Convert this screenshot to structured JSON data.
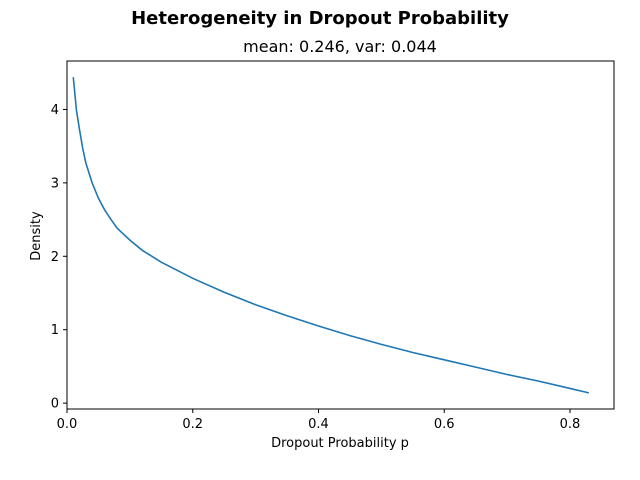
{
  "chart_data": {
    "type": "line",
    "title": "Heterogeneity in Dropout Probability",
    "subtitle": "mean: 0.246, var: 0.044",
    "xlabel": "Dropout Probability p",
    "ylabel": "Density",
    "xlim": [
      -0.0,
      0.87
    ],
    "ylim": [
      -0.08,
      4.66
    ],
    "xticks": [
      0.0,
      0.2,
      0.4,
      0.6,
      0.8
    ],
    "xtick_labels": [
      "0.0",
      "0.2",
      "0.4",
      "0.6",
      "0.8"
    ],
    "yticks": [
      0,
      1,
      2,
      3,
      4
    ],
    "ytick_labels": [
      "0",
      "1",
      "2",
      "3",
      "4"
    ],
    "grid": false,
    "line_color": "#1f77b4",
    "series": [
      {
        "x": [
          0.01,
          0.015,
          0.02,
          0.025,
          0.03,
          0.04,
          0.05,
          0.06,
          0.07,
          0.08,
          0.1,
          0.12,
          0.15,
          0.2,
          0.25,
          0.3,
          0.35,
          0.4,
          0.45,
          0.5,
          0.55,
          0.6,
          0.65,
          0.7,
          0.75,
          0.8,
          0.83
        ],
        "y": [
          4.44,
          3.99,
          3.72,
          3.47,
          3.27,
          3.0,
          2.79,
          2.63,
          2.5,
          2.38,
          2.22,
          2.08,
          1.92,
          1.7,
          1.51,
          1.34,
          1.19,
          1.05,
          0.92,
          0.8,
          0.69,
          0.59,
          0.49,
          0.39,
          0.3,
          0.2,
          0.14
        ]
      }
    ]
  }
}
